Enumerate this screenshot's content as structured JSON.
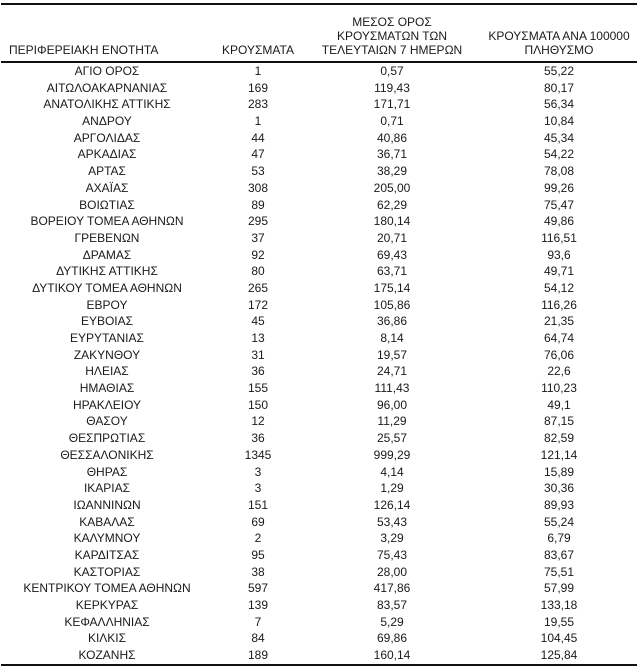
{
  "colors": {
    "background": "#ffffff",
    "text": "#1a1a1a",
    "rule": "#111111"
  },
  "table": {
    "columns": [
      "ΠΕΡΙΦΕΡΕΙΑΚΗ ΕΝΟΤΗΤΑ",
      "ΚΡΟΥΣΜΑΤΑ",
      "ΜΕΣΟΣ ΟΡΟΣ\nΚΡΟΥΣΜΑΤΩΝ ΤΩΝ\nΤΕΛΕΥΤΑΙΩΝ 7 ΗΜΕΡΩΝ",
      "ΚΡΟΥΣΜΑΤΑ ΑΝΑ 100000\nΠΛΗΘΥΣΜΟ"
    ],
    "rows": [
      [
        "ΑΓΙΟ ΟΡΟΣ",
        "1",
        "0,57",
        "55,22"
      ],
      [
        "ΑΙΤΩΛΟΑΚΑΡΝΑΝΙΑΣ",
        "169",
        "119,43",
        "80,17"
      ],
      [
        "ΑΝΑΤΟΛΙΚΗΣ ΑΤΤΙΚΗΣ",
        "283",
        "171,71",
        "56,34"
      ],
      [
        "ΑΝΔΡΟΥ",
        "1",
        "0,71",
        "10,84"
      ],
      [
        "ΑΡΓΟΛΙΔΑΣ",
        "44",
        "40,86",
        "45,34"
      ],
      [
        "ΑΡΚΑΔΙΑΣ",
        "47",
        "36,71",
        "54,22"
      ],
      [
        "ΑΡΤΑΣ",
        "53",
        "38,29",
        "78,08"
      ],
      [
        "ΑΧΑΪΑΣ",
        "308",
        "205,00",
        "99,26"
      ],
      [
        "ΒΟΙΩΤΙΑΣ",
        "89",
        "62,29",
        "75,47"
      ],
      [
        "ΒΟΡΕΙΟΥ ΤΟΜΕΑ ΑΘΗΝΩΝ",
        "295",
        "180,14",
        "49,86"
      ],
      [
        "ΓΡΕΒΕΝΩΝ",
        "37",
        "20,71",
        "116,51"
      ],
      [
        "ΔΡΑΜΑΣ",
        "92",
        "69,43",
        "93,6"
      ],
      [
        "ΔΥΤΙΚΗΣ ΑΤΤΙΚΗΣ",
        "80",
        "63,71",
        "49,71"
      ],
      [
        "ΔΥΤΙΚΟΥ ΤΟΜΕΑ ΑΘΗΝΩΝ",
        "265",
        "175,14",
        "54,12"
      ],
      [
        "ΕΒΡΟΥ",
        "172",
        "105,86",
        "116,26"
      ],
      [
        "ΕΥΒΟΙΑΣ",
        "45",
        "36,86",
        "21,35"
      ],
      [
        "ΕΥΡΥΤΑΝΙΑΣ",
        "13",
        "8,14",
        "64,74"
      ],
      [
        "ΖΑΚΥΝΘΟΥ",
        "31",
        "19,57",
        "76,06"
      ],
      [
        "ΗΛΕΙΑΣ",
        "36",
        "24,71",
        "22,6"
      ],
      [
        "ΗΜΑΘΙΑΣ",
        "155",
        "111,43",
        "110,23"
      ],
      [
        "ΗΡΑΚΛΕΙΟΥ",
        "150",
        "96,00",
        "49,1"
      ],
      [
        "ΘΑΣΟΥ",
        "12",
        "11,29",
        "87,15"
      ],
      [
        "ΘΕΣΠΡΩΤΙΑΣ",
        "36",
        "25,57",
        "82,59"
      ],
      [
        "ΘΕΣΣΑΛΟΝΙΚΗΣ",
        "1345",
        "999,29",
        "121,14"
      ],
      [
        "ΘΗΡΑΣ",
        "3",
        "4,14",
        "15,89"
      ],
      [
        "ΙΚΑΡΙΑΣ",
        "3",
        "1,29",
        "30,36"
      ],
      [
        "ΙΩΑΝΝΙΝΩΝ",
        "151",
        "126,14",
        "89,93"
      ],
      [
        "ΚΑΒΑΛΑΣ",
        "69",
        "53,43",
        "55,24"
      ],
      [
        "ΚΑΛΥΜΝΟΥ",
        "2",
        "3,29",
        "6,79"
      ],
      [
        "ΚΑΡΔΙΤΣΑΣ",
        "95",
        "75,43",
        "83,67"
      ],
      [
        "ΚΑΣΤΟΡΙΑΣ",
        "38",
        "28,00",
        "75,51"
      ],
      [
        "ΚΕΝΤΡΙΚΟΥ ΤΟΜΕΑ ΑΘΗΝΩΝ",
        "597",
        "417,86",
        "57,99"
      ],
      [
        "ΚΕΡΚΥΡΑΣ",
        "139",
        "83,57",
        "133,18"
      ],
      [
        "ΚΕΦΑΛΛΗΝΙΑΣ",
        "7",
        "5,29",
        "19,55"
      ],
      [
        "ΚΙΛΚΙΣ",
        "84",
        "69,86",
        "104,45"
      ],
      [
        "ΚΟΖΑΝΗΣ",
        "189",
        "160,14",
        "125,84"
      ]
    ]
  }
}
